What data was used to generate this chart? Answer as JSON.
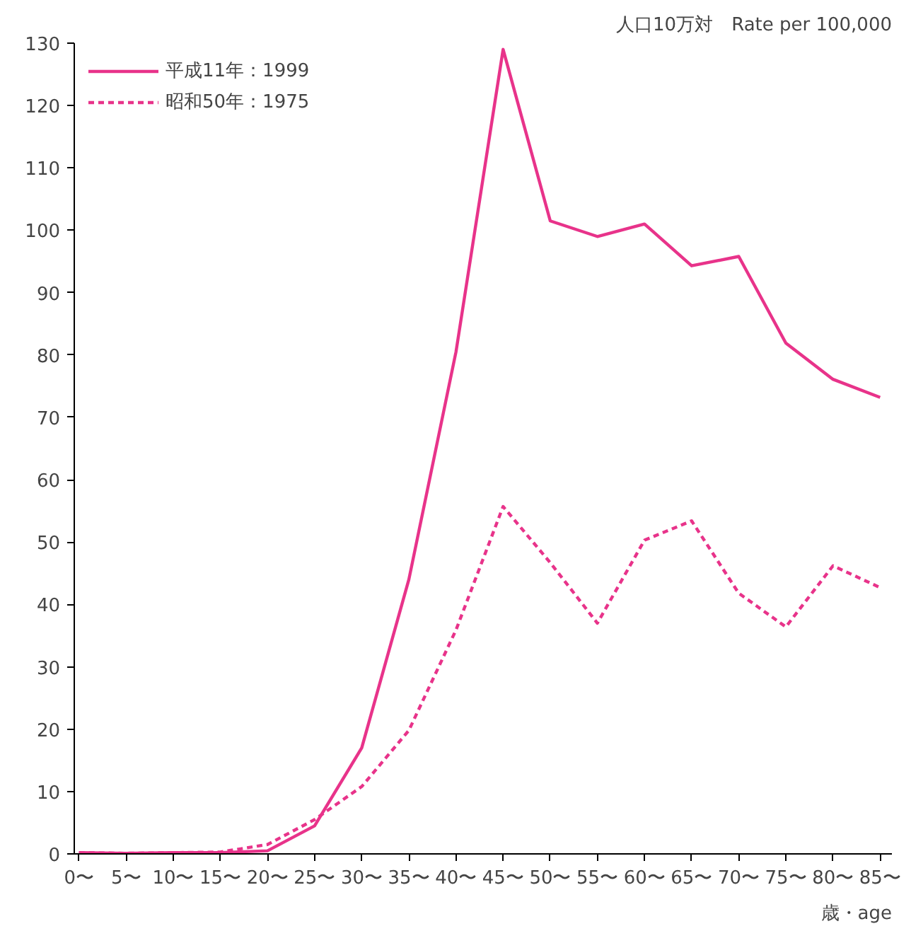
{
  "chart_data": {
    "type": "line",
    "ylabel": "人口10万対　Rate per 100,000",
    "xlabel": "歳・age",
    "categories": [
      "0〜",
      "5〜",
      "10〜",
      "15〜",
      "20〜",
      "25〜",
      "30〜",
      "35〜",
      "40〜",
      "45〜",
      "50〜",
      "55〜",
      "60〜",
      "65〜",
      "70〜",
      "75〜",
      "80〜",
      "85〜"
    ],
    "series": [
      {
        "name": "平成11年：1999",
        "color": "#e8338a",
        "line_style": "solid",
        "values": [
          0.2,
          0.1,
          0.2,
          0.2,
          0.5,
          4.5,
          17,
          44,
          80.5,
          129,
          101.5,
          99,
          101,
          94.3,
          95.8,
          81.9,
          76.1,
          73.2
        ]
      },
      {
        "name": "昭和50年：1975",
        "color": "#e8338a",
        "line_style": "dashed",
        "values": [
          0.2,
          0.1,
          0.2,
          0.3,
          1.5,
          5.5,
          10.8,
          19.8,
          35.9,
          55.7,
          46.7,
          37,
          50.3,
          53.4,
          41.8,
          36.4,
          46.2,
          42.7
        ]
      }
    ],
    "ylim": [
      0,
      130
    ],
    "yticks": [
      0,
      10,
      20,
      30,
      40,
      50,
      60,
      70,
      80,
      90,
      100,
      110,
      120,
      130
    ],
    "grid": false,
    "legend": "top left",
    "marker": "none"
  }
}
